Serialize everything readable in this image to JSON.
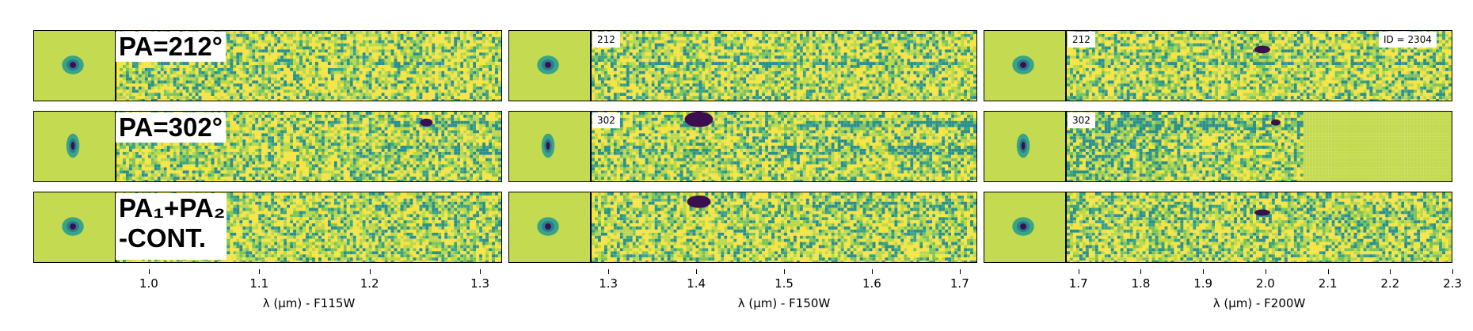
{
  "rows": [
    {
      "label": "PA=212°",
      "tag": "212"
    },
    {
      "label": "PA=302°",
      "tag": "302"
    },
    {
      "label_line1": "PA₁+PA₂",
      "label_line2": "-CONT."
    }
  ],
  "id_label": "ID = 2304",
  "axes": [
    {
      "xlabel": "λ (μm) - F115W",
      "ticks": [
        "1.0",
        "1.1",
        "1.2",
        "1.3"
      ],
      "tick_values": [
        1.0,
        1.1,
        1.2,
        1.3
      ],
      "xlim": [
        0.97,
        1.32
      ]
    },
    {
      "xlabel": "λ (μm) - F150W",
      "ticks": [
        "1.3",
        "1.4",
        "1.5",
        "1.6",
        "1.7"
      ],
      "tick_values": [
        1.3,
        1.4,
        1.5,
        1.6,
        1.7
      ],
      "xlim": [
        1.28,
        1.72
      ]
    },
    {
      "xlabel": "λ (μm) - F200W",
      "ticks": [
        "1.7",
        "1.8",
        "1.9",
        "2.0",
        "2.1",
        "2.2",
        "2.3"
      ],
      "tick_values": [
        1.7,
        1.8,
        1.9,
        2.0,
        2.1,
        2.2,
        2.3
      ],
      "xlim": [
        1.68,
        2.3
      ]
    }
  ],
  "colors": {
    "yellow": "#f6e443",
    "green": "#bcd84a",
    "teal": "#2a8f8c",
    "dark": "#3b0f50",
    "stamp_bg": "#c4da50"
  }
}
